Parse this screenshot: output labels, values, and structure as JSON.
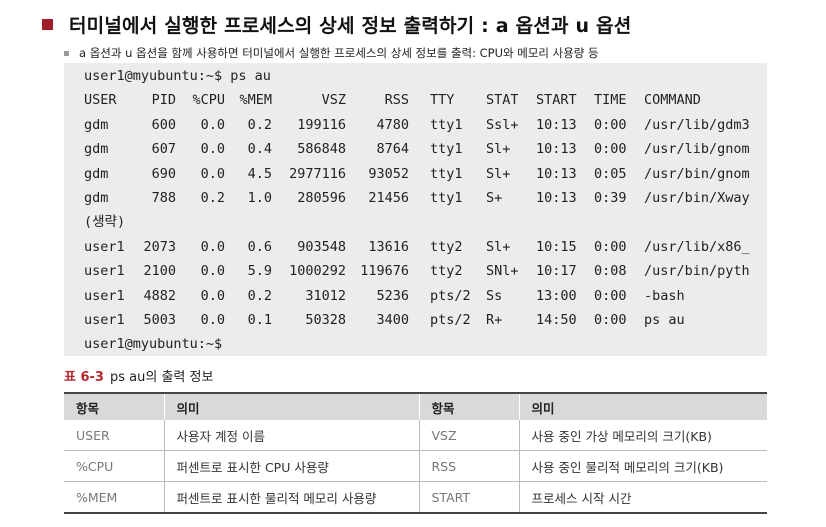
{
  "heading": "터미널에서 실행한 프로세스의 상세 정보 출력하기 : a 옵션과 u 옵션",
  "subtitle": "a 옵션과 u 옵션을 함께 사용하면 터미널에서 실행한 프로세스의 상세 정보를 출력: CPU와 메모리 사용량 등",
  "terminal": {
    "prompt_cmd": "user1@myubuntu:~$ ps au",
    "prompt_end": "user1@myubuntu:~$",
    "omitted": "(생략)",
    "headers": [
      "USER",
      "PID",
      "%CPU",
      "%MEM",
      "VSZ",
      "RSS",
      "TTY",
      "STAT",
      "START",
      "TIME",
      "COMMAND"
    ],
    "rows": [
      [
        "gdm",
        "600",
        "0.0",
        "0.2",
        "199116",
        "4780",
        "tty1",
        "Ssl+",
        "10:13",
        "0:00",
        "/usr/lib/gdm3"
      ],
      [
        "gdm",
        "607",
        "0.0",
        "0.4",
        "586848",
        "8764",
        "tty1",
        "Sl+",
        "10:13",
        "0:00",
        "/usr/lib/gnom"
      ],
      [
        "gdm",
        "690",
        "0.0",
        "4.5",
        "2977116",
        "93052",
        "tty1",
        "Sl+",
        "10:13",
        "0:05",
        "/usr/bin/gnom"
      ],
      [
        "gdm",
        "788",
        "0.2",
        "1.0",
        "280596",
        "21456",
        "tty1",
        "S+",
        "10:13",
        "0:39",
        "/usr/bin/Xway"
      ]
    ],
    "rows2": [
      [
        "user1",
        "2073",
        "0.0",
        "0.6",
        "903548",
        "13616",
        "tty2",
        "Sl+",
        "10:15",
        "0:00",
        "/usr/lib/x86_"
      ],
      [
        "user1",
        "2100",
        "0.0",
        "5.9",
        "1000292",
        "119676",
        "tty2",
        "SNl+",
        "10:17",
        "0:08",
        "/usr/bin/pyth"
      ],
      [
        "user1",
        "4882",
        "0.0",
        "0.2",
        "31012",
        "5236",
        "pts/2",
        "Ss",
        "13:00",
        "0:00",
        "-bash"
      ],
      [
        "user1",
        "5003",
        "0.0",
        "0.1",
        "50328",
        "3400",
        "pts/2",
        "R+",
        "14:50",
        "0:00",
        "ps au"
      ]
    ]
  },
  "caption": {
    "number": "표 6-3",
    "text": "ps au의 출력 정보"
  },
  "table": {
    "headers": [
      "항목",
      "의미",
      "항목",
      "의미"
    ],
    "rows": [
      [
        "USER",
        "사용자 계정 이름",
        "VSZ",
        "사용 중인 가상 메모리의 크기(KB)"
      ],
      [
        "%CPU",
        "퍼센트로 표시한 CPU 사용량",
        "RSS",
        "사용 중인 물리적 메모리의 크기(KB)"
      ],
      [
        "%MEM",
        "퍼센트로 표시한 물리적 메모리 사용량",
        "START",
        "프로세스 시작 시간"
      ]
    ]
  }
}
